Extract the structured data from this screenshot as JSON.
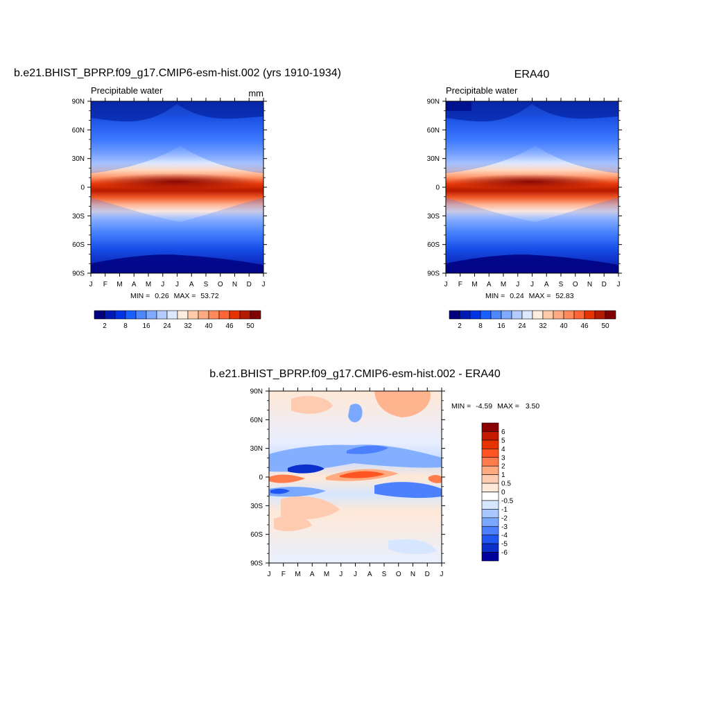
{
  "chart_data": [
    {
      "type": "heatmap",
      "title": "b.e21.BHIST_BPRP.f09_g17.CMIP6-esm-hist.002 (yrs 1910-1934)",
      "subtitle_left": "Precipitable water",
      "subtitle_right": "mm",
      "x_ticks": [
        "J",
        "F",
        "M",
        "A",
        "M",
        "J",
        "J",
        "A",
        "S",
        "O",
        "N",
        "D",
        "J"
      ],
      "y_ticks": [
        "90N",
        "60N",
        "30N",
        "0",
        "30S",
        "60S",
        "90S"
      ],
      "min_label": "MIN =",
      "min_value": "0.26",
      "max_label": "MAX =",
      "max_value": "53.72",
      "colorbar_labels": [
        "2",
        "8",
        "16",
        "24",
        "32",
        "40",
        "46",
        "50"
      ],
      "colorbar_colors": [
        "#00007f",
        "#0019b2",
        "#0033e6",
        "#1a5fff",
        "#4d88ff",
        "#80aaff",
        "#b3ccff",
        "#dde8ff",
        "#ffeedd",
        "#ffccaa",
        "#ffaa80",
        "#ff8a5c",
        "#ff6633",
        "#e63300",
        "#b31a00",
        "#7f0000"
      ]
    },
    {
      "type": "heatmap",
      "title": "ERA40",
      "subtitle_left": "Precipitable water",
      "x_ticks": [
        "J",
        "F",
        "M",
        "A",
        "M",
        "J",
        "J",
        "A",
        "S",
        "O",
        "N",
        "D",
        "J"
      ],
      "y_ticks": [
        "90N",
        "60N",
        "30N",
        "0",
        "30S",
        "60S",
        "90S"
      ],
      "min_label": "MIN =",
      "min_value": "0.24",
      "max_label": "MAX =",
      "max_value": "52.83",
      "colorbar_labels": [
        "2",
        "8",
        "16",
        "24",
        "32",
        "40",
        "46",
        "50"
      ]
    },
    {
      "type": "heatmap",
      "title": "b.e21.BHIST_BPRP.f09_g17.CMIP6-esm-hist.002 - ERA40",
      "x_ticks": [
        "J",
        "F",
        "M",
        "A",
        "M",
        "J",
        "J",
        "A",
        "S",
        "O",
        "N",
        "D",
        "J"
      ],
      "y_ticks": [
        "90N",
        "60N",
        "30N",
        "0",
        "30S",
        "60S",
        "90S"
      ],
      "min_label": "MIN =",
      "min_value": "-4.59",
      "max_label": "MAX =",
      "max_value": "3.50",
      "colorbar_labels": [
        "6",
        "5",
        "4",
        "3",
        "2",
        "1",
        "0.5",
        "0",
        "-0.5",
        "-1",
        "-2",
        "-3",
        "-4",
        "-5",
        "-6"
      ],
      "colorbar_colors": [
        "#8b0000",
        "#c41a00",
        "#e63300",
        "#ff5522",
        "#ff7d4d",
        "#ffaa80",
        "#ffcbb0",
        "#ffe8d6",
        "#ffffff",
        "#d6e6ff",
        "#a9c8ff",
        "#7aa8ff",
        "#4d80ff",
        "#1f55f0",
        "#0a2fcc",
        "#00009a"
      ]
    }
  ]
}
